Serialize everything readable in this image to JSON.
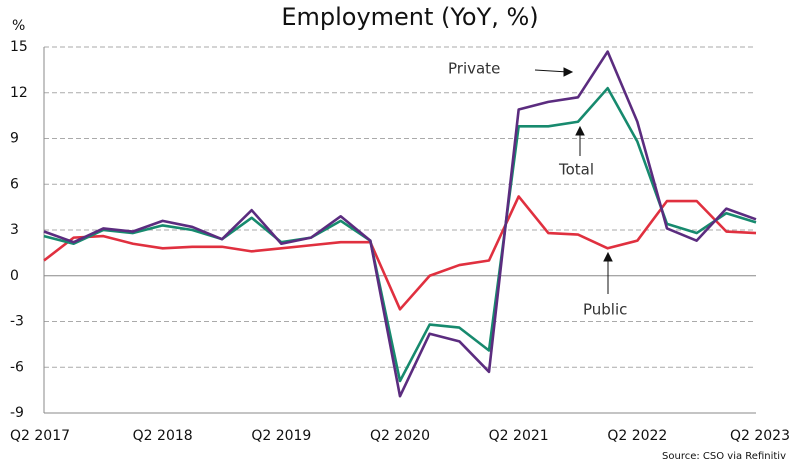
{
  "chart_data": {
    "type": "line",
    "title": "Employment (YoY, %)",
    "y_label": "%",
    "source": "Source: CSO via Refinitiv",
    "categories": [
      "Q2 2017",
      null,
      null,
      null,
      "Q2 2018",
      null,
      null,
      null,
      "Q2 2019",
      null,
      null,
      null,
      "Q2 2020",
      null,
      null,
      null,
      "Q2 2021",
      null,
      null,
      null,
      "Q2 2022",
      null,
      null,
      null,
      "Q2 2023"
    ],
    "series": [
      {
        "name": "Private",
        "color": "#5b2c7f",
        "values": [
          2.9,
          2.2,
          3.1,
          2.9,
          3.6,
          3.2,
          2.4,
          4.3,
          2.1,
          2.5,
          3.9,
          2.3,
          -7.9,
          -3.8,
          -4.3,
          -6.3,
          10.9,
          11.4,
          11.7,
          14.7,
          10.1,
          3.1,
          2.3,
          4.4,
          3.7
        ]
      },
      {
        "name": "Total",
        "color": "#178a6e",
        "values": [
          2.6,
          2.1,
          3.0,
          2.8,
          3.3,
          3.0,
          2.4,
          3.8,
          2.2,
          2.5,
          3.6,
          2.3,
          -6.9,
          -3.2,
          -3.4,
          -4.9,
          9.8,
          9.8,
          10.1,
          12.3,
          8.8,
          3.4,
          2.8,
          4.1,
          3.5
        ]
      },
      {
        "name": "Public",
        "color": "#e0303f",
        "values": [
          1.0,
          2.5,
          2.6,
          2.1,
          1.8,
          1.9,
          1.9,
          1.6,
          1.8,
          2.0,
          2.2,
          2.2,
          -2.2,
          0.0,
          0.7,
          1.0,
          5.2,
          2.8,
          2.7,
          1.8,
          2.3,
          4.9,
          4.9,
          2.9,
          2.8
        ]
      }
    ],
    "ylim": [
      -9,
      15
    ],
    "yticks": [
      15,
      12,
      9,
      6,
      3,
      0,
      -3,
      -6,
      -9
    ],
    "grid": true
  }
}
